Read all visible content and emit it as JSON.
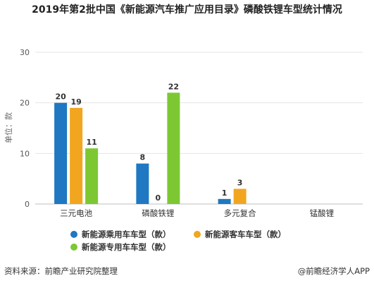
{
  "title": "2019年第2批中国《新能源汽车推广应用目录》磷酸铁锂车型统计情况",
  "footer": {
    "source": "资料来源：前瞻产业研究院整理",
    "brand": "@前瞻经济学人APP"
  },
  "colors": {
    "series": [
      "#1f78c1",
      "#f2a61f",
      "#7dc832"
    ]
  },
  "chart_data": {
    "type": "bar",
    "categories": [
      "三元电池",
      "磷酸铁锂",
      "多元复合",
      "锰酸锂"
    ],
    "series": [
      {
        "name": "新能源乘用车车型（款）",
        "values": [
          20,
          8,
          1,
          null
        ]
      },
      {
        "name": "新能源客车车型（款）",
        "values": [
          19,
          0,
          3,
          null
        ]
      },
      {
        "name": "新能源专用车车型（款）",
        "values": [
          11,
          22,
          null,
          null
        ]
      }
    ],
    "ylabel": "单位：款",
    "ylim": [
      0,
      30
    ],
    "yticks": [
      0,
      10,
      20,
      30
    ],
    "grid": true,
    "legend_position": "bottom"
  }
}
